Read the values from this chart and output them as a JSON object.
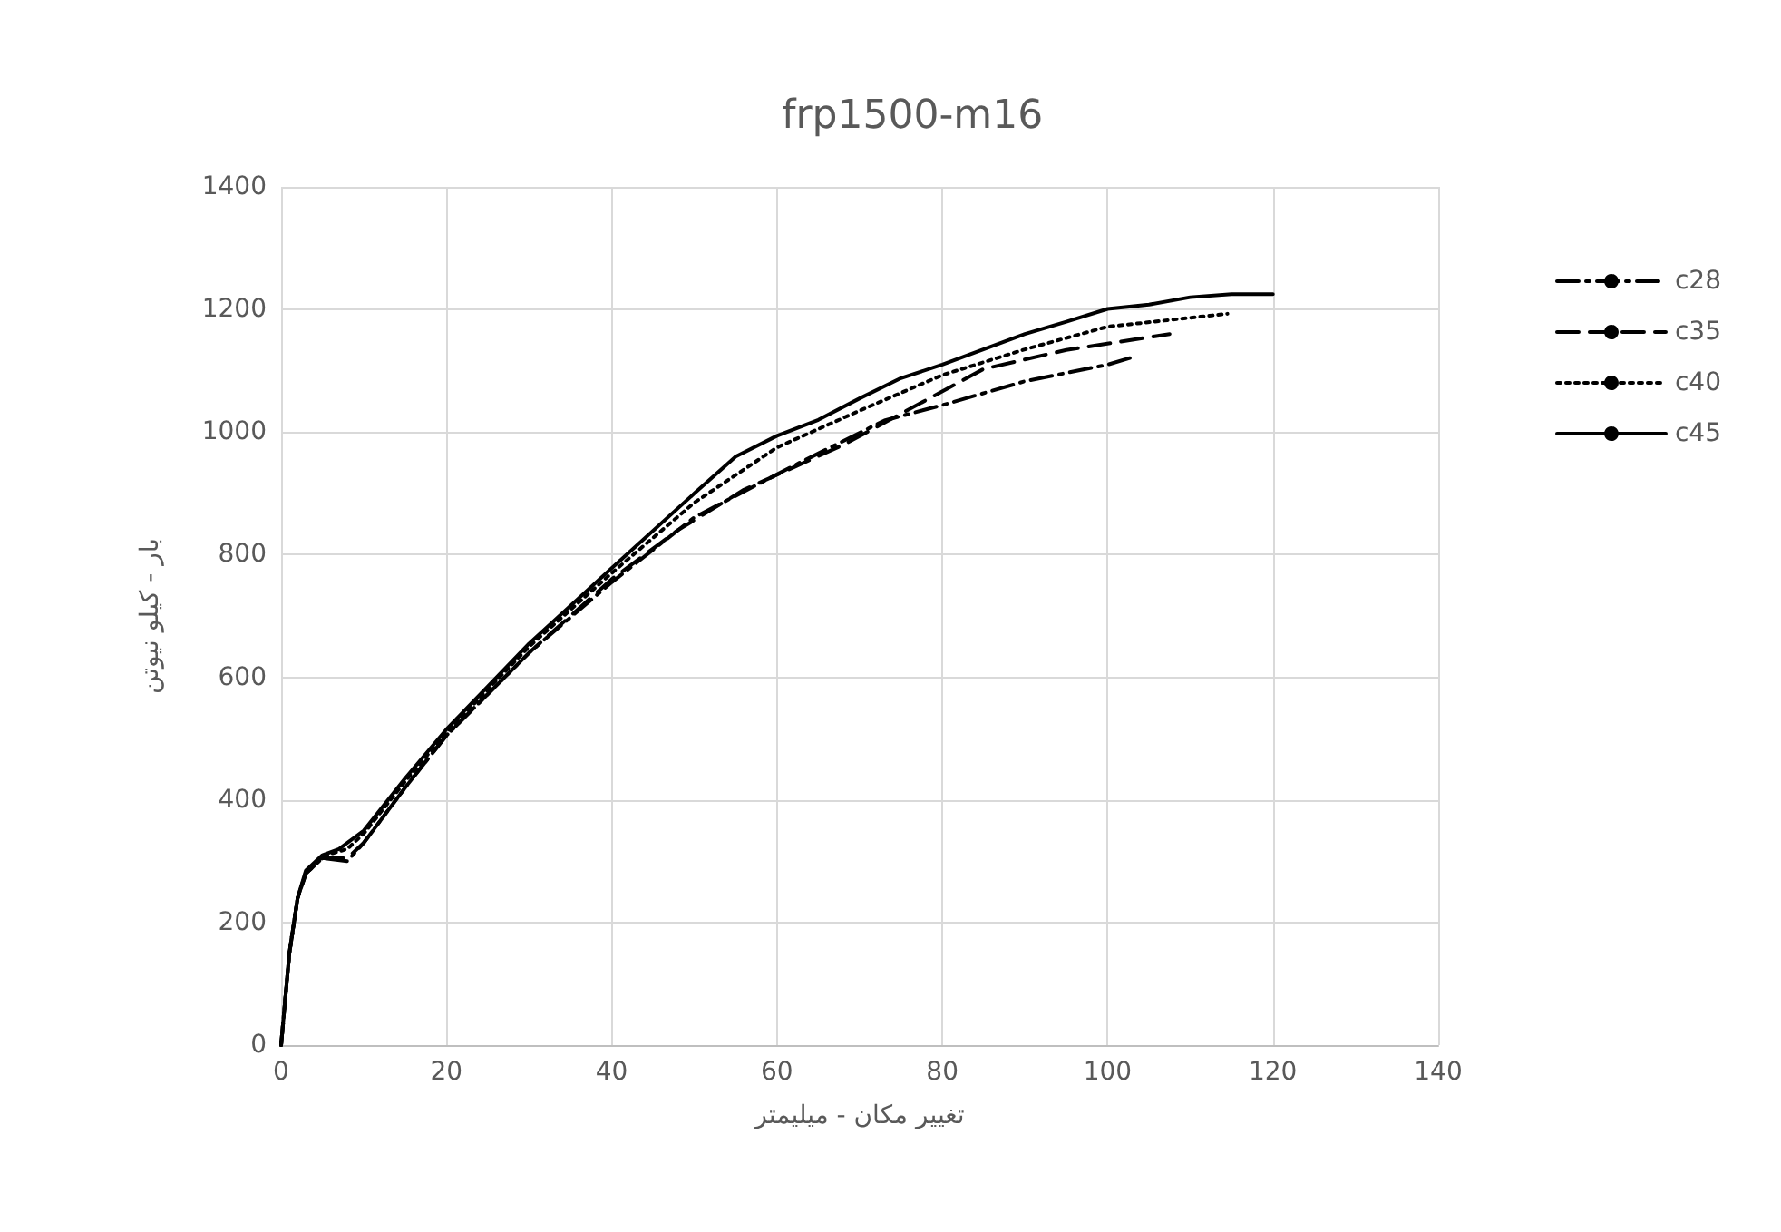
{
  "chart_data": {
    "type": "line",
    "title": "frp1500-m16",
    "xlabel": "تغییر مکان - میلیمتر",
    "ylabel": "بار - کیلو نیوتن",
    "xlim": [
      0,
      140
    ],
    "xticks": [
      0,
      20,
      40,
      60,
      80,
      100,
      120,
      140
    ],
    "ylim": [
      0,
      1400
    ],
    "yticks": [
      0,
      200,
      400,
      600,
      800,
      1000,
      1200,
      1400
    ],
    "grid": true,
    "legend": "right",
    "marker": "none",
    "series": [
      {
        "name": "c28",
        "color": "#000000",
        "line_style": "dashdot",
        "x": [
          0,
          1,
          2,
          3,
          5,
          8,
          10,
          15,
          20,
          30,
          40,
          50,
          62,
          73,
          80,
          90,
          100,
          103
        ],
        "values": [
          0,
          150,
          240,
          280,
          305,
          300,
          330,
          420,
          505,
          640,
          755,
          861,
          945,
          1019,
          1044,
          1083,
          1110,
          1122
        ]
      },
      {
        "name": "c35",
        "color": "#000000",
        "line_style": "dashed",
        "x": [
          0,
          1,
          2,
          3,
          5,
          8,
          10,
          15,
          20,
          30,
          40,
          48,
          56,
          68,
          75,
          85,
          95,
          107.5
        ],
        "values": [
          0,
          150,
          240,
          280,
          305,
          305,
          330,
          420,
          505,
          640,
          760,
          840,
          906,
          979,
          1030,
          1103,
          1134,
          1160
        ]
      },
      {
        "name": "c40",
        "color": "#000000",
        "line_style": "dotted",
        "x": [
          0,
          1,
          2,
          3,
          5,
          8,
          10,
          15,
          20,
          30,
          40,
          50,
          60,
          70,
          80,
          90,
          100,
          114.5
        ],
        "values": [
          0,
          150,
          240,
          282,
          308,
          320,
          345,
          430,
          510,
          650,
          770,
          885,
          975,
          1035,
          1093,
          1135,
          1172,
          1193
        ]
      },
      {
        "name": "c45",
        "color": "#000000",
        "line_style": "solid",
        "x": [
          0,
          1,
          2,
          3,
          5,
          7,
          10,
          15,
          20,
          30,
          40,
          50,
          55,
          60,
          65,
          70,
          75,
          80,
          90,
          95,
          100,
          105,
          110,
          115,
          120
        ],
        "values": [
          0,
          150,
          240,
          285,
          310,
          320,
          350,
          435,
          515,
          655,
          778,
          900,
          960,
          994,
          1020,
          1055,
          1088,
          1110,
          1160,
          1180,
          1201,
          1208,
          1220,
          1225,
          1225
        ]
      }
    ]
  }
}
